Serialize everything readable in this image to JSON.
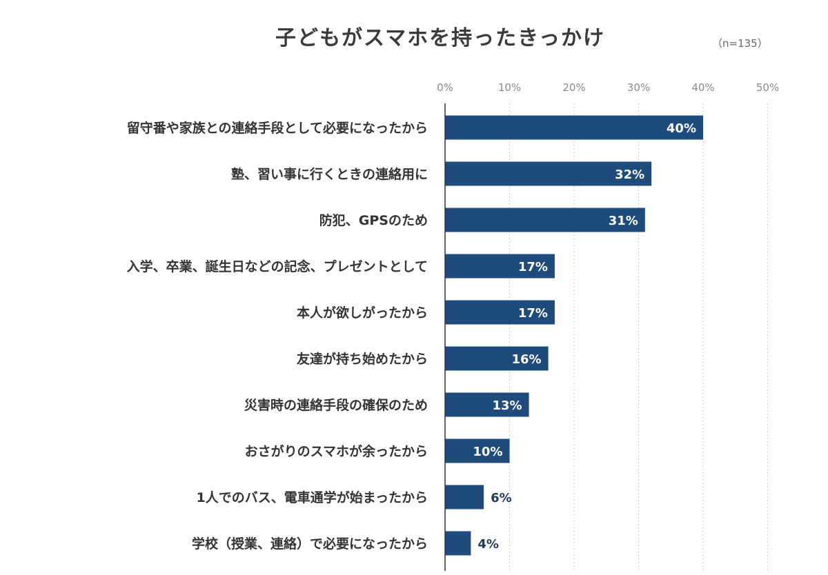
{
  "title": "子どもがスマホを持ったきっかけ",
  "note": "（n=135）",
  "colors": {
    "bar": "#1f4a7c",
    "inside_label": "#ffffff",
    "outside_label": "#1f3a5c",
    "grid": "#cfcfcf",
    "axis": "#333333"
  },
  "chart_data": {
    "type": "bar",
    "orientation": "horizontal",
    "title": "子どもがスマホを持ったきっかけ",
    "xlim": [
      0,
      50
    ],
    "ticks": [
      "0%",
      "10%",
      "20%",
      "30%",
      "40%",
      "50%"
    ],
    "tick_values": [
      0,
      10,
      20,
      30,
      40,
      50
    ],
    "categories": [
      "留守番や家族との連絡手段として必要になったから",
      "塾、習い事に行くときの連絡用に",
      "防犯、GPSのため",
      "入学、卒業、誕生日などの記念、プレゼントとして",
      "本人が欲しがったから",
      "友達が持ち始めたから",
      "災害時の連絡手段の確保のため",
      "おさがりのスマホが余ったから",
      "1人でのバス、電車通学が始まったから",
      "学校（授業、連絡）で必要になったから"
    ],
    "values": [
      40,
      32,
      31,
      17,
      17,
      16,
      13,
      10,
      6,
      4
    ],
    "value_labels": [
      "40%",
      "32%",
      "31%",
      "17%",
      "17%",
      "16%",
      "13%",
      "10%",
      "6%",
      "4%"
    ],
    "grid": true,
    "legend": "none"
  }
}
